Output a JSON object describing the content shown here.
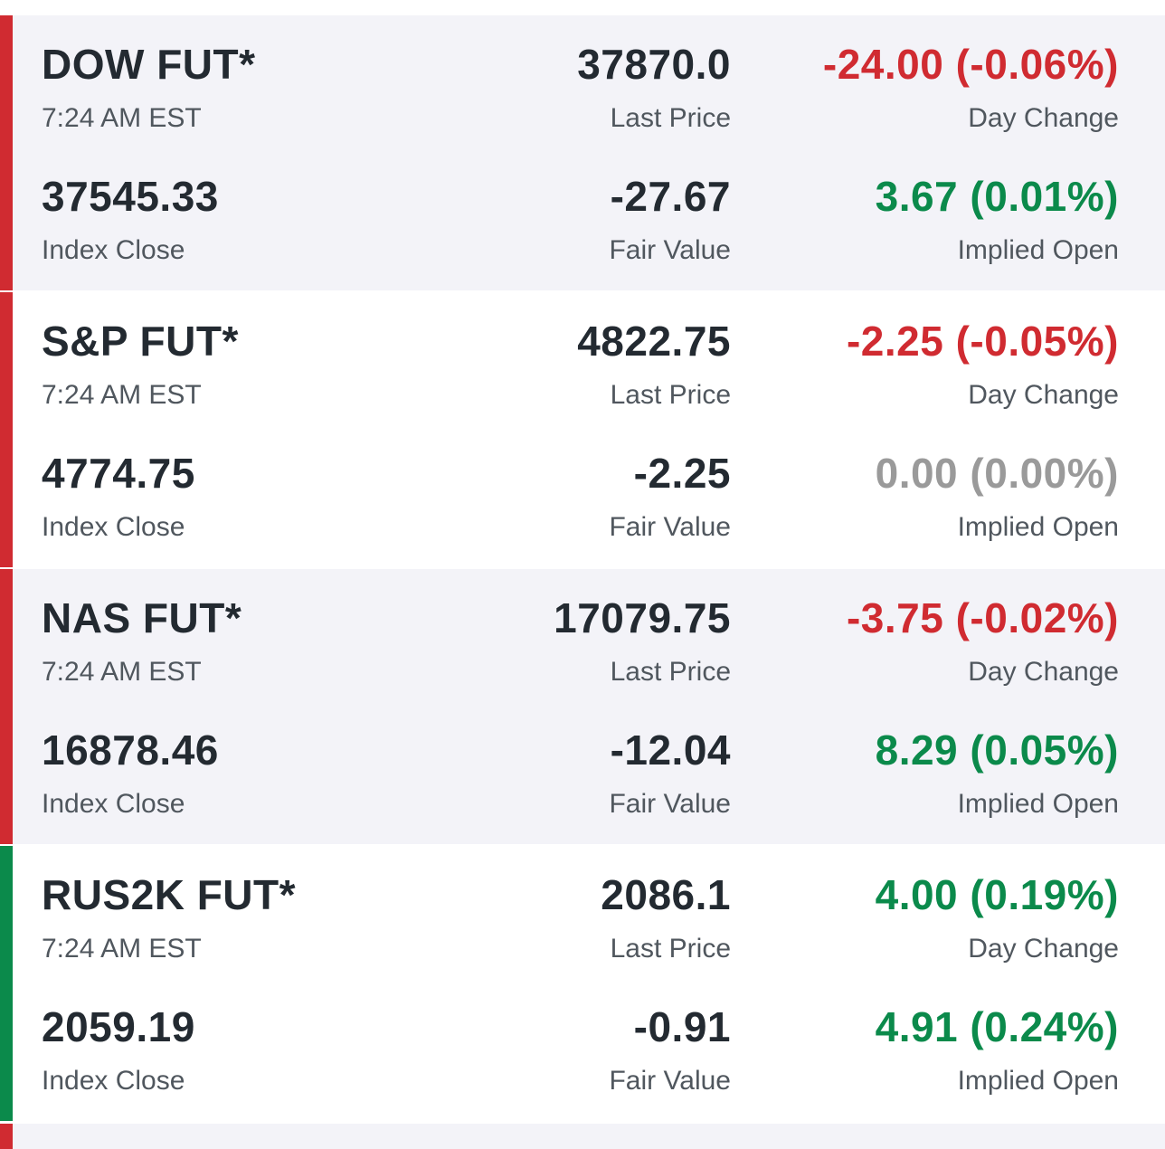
{
  "futures": [
    {
      "name": "DOW FUT*",
      "time": "7:24 AM EST",
      "last_price": "37870.0",
      "last_price_label": "Last Price",
      "day_change": "-24.00 (-0.06%)",
      "day_change_label": "Day Change",
      "index_close": "37545.33",
      "index_close_label": "Index Close",
      "fair_value": "-27.67",
      "fair_value_label": "Fair Value",
      "implied_open": "3.67 (0.01%)",
      "implied_open_label": "Implied Open",
      "trend": "down",
      "day_change_direction": "negative",
      "implied_open_direction": "positive"
    },
    {
      "name": "S&P FUT*",
      "time": "7:24 AM EST",
      "last_price": "4822.75",
      "last_price_label": "Last Price",
      "day_change": "-2.25 (-0.05%)",
      "day_change_label": "Day Change",
      "index_close": "4774.75",
      "index_close_label": "Index Close",
      "fair_value": "-2.25",
      "fair_value_label": "Fair Value",
      "implied_open": "0.00 (0.00%)",
      "implied_open_label": "Implied Open",
      "trend": "down",
      "day_change_direction": "negative",
      "implied_open_direction": "flat"
    },
    {
      "name": "NAS FUT*",
      "time": "7:24 AM EST",
      "last_price": "17079.75",
      "last_price_label": "Last Price",
      "day_change": "-3.75 (-0.02%)",
      "day_change_label": "Day Change",
      "index_close": "16878.46",
      "index_close_label": "Index Close",
      "fair_value": "-12.04",
      "fair_value_label": "Fair Value",
      "implied_open": "8.29 (0.05%)",
      "implied_open_label": "Implied Open",
      "trend": "down",
      "day_change_direction": "negative",
      "implied_open_direction": "positive"
    },
    {
      "name": "RUS2K FUT*",
      "time": "7:24 AM EST",
      "last_price": "2086.1",
      "last_price_label": "Last Price",
      "day_change": "4.00 (0.19%)",
      "day_change_label": "Day Change",
      "index_close": "2059.19",
      "index_close_label": "Index Close",
      "fair_value": "-0.91",
      "fair_value_label": "Fair Value",
      "implied_open": "4.91 (0.24%)",
      "implied_open_label": "Implied Open",
      "trend": "up",
      "day_change_direction": "positive",
      "implied_open_direction": "positive"
    }
  ],
  "colors": {
    "negative": "#d02b31",
    "positive": "#0b8a4b",
    "flat": "#9a9a9a",
    "shaded_row": "#f3f3f8"
  }
}
